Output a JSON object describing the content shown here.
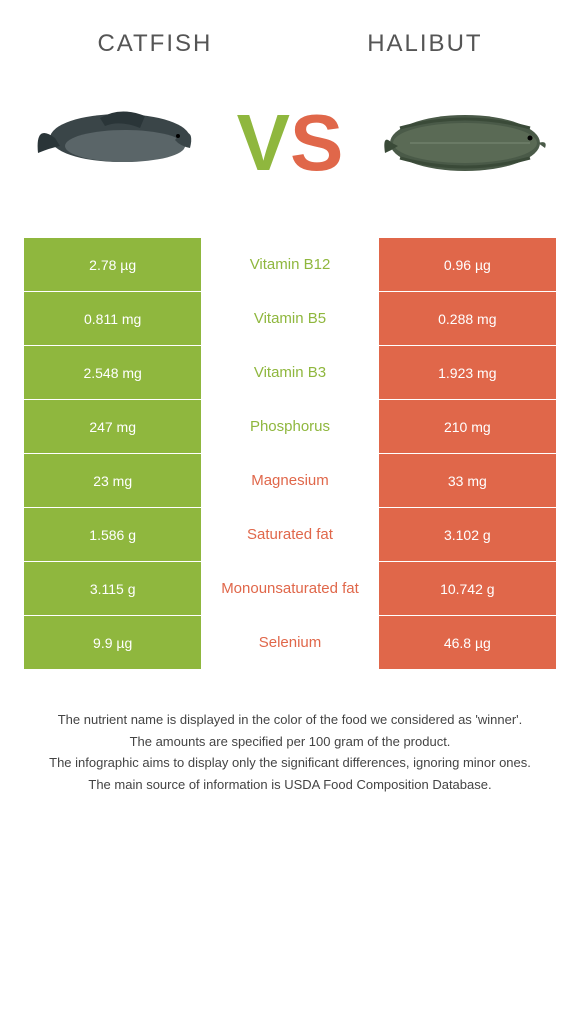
{
  "header": {
    "left": "Catfish",
    "right": "Halibut"
  },
  "vs": {
    "v_color": "#8fb73e",
    "s_color": "#e0674a",
    "text_v": "V",
    "text_s": "S"
  },
  "colors": {
    "green": "#8fb73e",
    "orange": "#e0674a",
    "mid_green_text": "#8fb73e",
    "mid_orange_text": "#e0674a"
  },
  "rows": [
    {
      "left": "2.78 µg",
      "mid": "Vitamin B12",
      "right": "0.96 µg",
      "winner": "left"
    },
    {
      "left": "0.811 mg",
      "mid": "Vitamin B5",
      "right": "0.288 mg",
      "winner": "left"
    },
    {
      "left": "2.548 mg",
      "mid": "Vitamin B3",
      "right": "1.923 mg",
      "winner": "left"
    },
    {
      "left": "247 mg",
      "mid": "Phosphorus",
      "right": "210 mg",
      "winner": "left"
    },
    {
      "left": "23 mg",
      "mid": "Magnesium",
      "right": "33 mg",
      "winner": "right"
    },
    {
      "left": "1.586 g",
      "mid": "Saturated fat",
      "right": "3.102 g",
      "winner": "right"
    },
    {
      "left": "3.115 g",
      "mid": "Monounsaturated fat",
      "right": "10.742 g",
      "winner": "right"
    },
    {
      "left": "9.9 µg",
      "mid": "Selenium",
      "right": "46.8 µg",
      "winner": "right"
    }
  ],
  "footer": {
    "l1": "The nutrient name is displayed in the color of the food we considered as 'winner'.",
    "l2": "The amounts are specified per 100 gram of the product.",
    "l3": "The infographic aims to display only the significant differences, ignoring minor ones.",
    "l4": "The main source of information is USDA Food Composition Database."
  }
}
